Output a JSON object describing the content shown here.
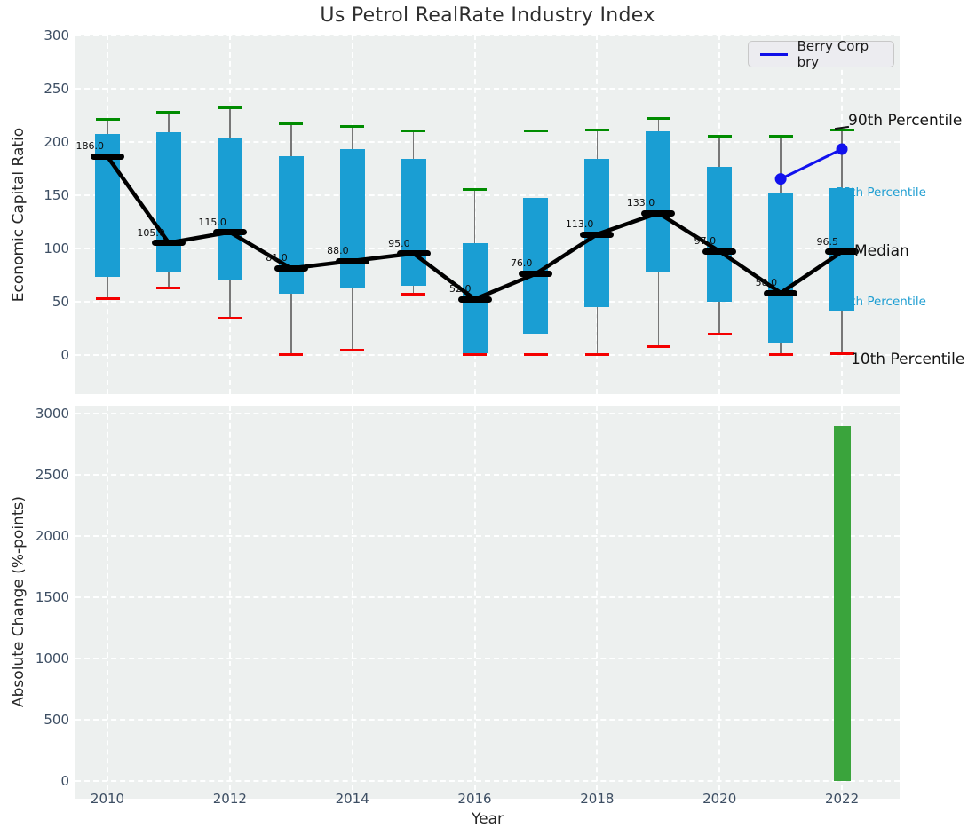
{
  "title": "Us Petrol RealRate Industry Index",
  "legend": {
    "label": "Berry Corp bry"
  },
  "axes": {
    "top": {
      "ylabel": "Economic Capital Ratio",
      "yticks": [
        0,
        50,
        100,
        150,
        200,
        250,
        300
      ]
    },
    "bottom": {
      "ylabel": "Absolute Change (%-points)",
      "xlabel": "Year",
      "yticks": [
        0,
        500,
        1000,
        1500,
        2000,
        2500,
        3000
      ],
      "xticks": [
        2010,
        2012,
        2014,
        2016,
        2018,
        2020,
        2022
      ]
    }
  },
  "annotations": [
    {
      "label": "90th Percentile",
      "value": 218,
      "style": "black"
    },
    {
      "label": "75th Percentile",
      "value": 151,
      "style": "blue"
    },
    {
      "label": "Median",
      "value": 95.5,
      "style": "black"
    },
    {
      "label": "25th Percentile",
      "value": 48,
      "style": "blue"
    },
    {
      "label": "10th Percentile",
      "value": -6,
      "style": "black"
    }
  ],
  "chart_data": [
    {
      "type": "box",
      "title": "Us Petrol RealRate Industry Index",
      "ylabel": "Economic Capital Ratio",
      "ylim": [
        -37,
        300.5
      ],
      "grid": true,
      "legend_position": "upper right",
      "x": [
        2010,
        2011,
        2012,
        2013,
        2014,
        2015,
        2016,
        2017,
        2018,
        2019,
        2020,
        2021,
        2022
      ],
      "series": [
        {
          "name": "90th Percentile",
          "values": [
            221,
            228,
            232,
            217,
            214,
            210,
            155,
            210,
            211,
            222,
            205,
            205,
            211
          ]
        },
        {
          "name": "75th Percentile",
          "values": [
            207,
            209,
            203,
            186,
            193,
            184,
            105,
            147,
            184,
            210,
            176,
            151,
            156
          ]
        },
        {
          "name": "Median",
          "values": [
            186,
            105,
            115,
            81,
            88,
            95,
            52,
            76,
            113,
            133,
            97,
            58,
            96.5
          ]
        },
        {
          "name": "25th Percentile",
          "values": [
            73,
            78,
            70,
            57,
            62,
            65,
            1,
            20,
            45,
            78,
            50,
            11,
            41
          ]
        },
        {
          "name": "10th Percentile",
          "values": [
            53,
            63,
            34,
            0,
            4,
            57,
            0,
            0,
            0,
            8,
            19,
            0,
            1
          ]
        }
      ],
      "median_labels": [
        "186.0",
        "105.0",
        "115.0",
        "81.0",
        "88.0",
        "95.0",
        "52.0",
        "76.0",
        "113.0",
        "133.0",
        "97.0",
        "58.0",
        "96.5"
      ],
      "company_series": {
        "name": "Berry Corp bry",
        "x": [
          2021,
          2022
        ],
        "values": [
          165,
          193
        ]
      }
    },
    {
      "type": "bar",
      "ylabel": "Absolute Change (%-points)",
      "xlabel": "Year",
      "ylim": [
        -145,
        3063
      ],
      "grid": true,
      "x": [
        2010,
        2011,
        2012,
        2013,
        2014,
        2015,
        2016,
        2017,
        2018,
        2019,
        2020,
        2021,
        2022
      ],
      "values": [
        null,
        null,
        null,
        null,
        null,
        null,
        null,
        null,
        null,
        null,
        null,
        null,
        2900
      ]
    }
  ],
  "colors": {
    "box": "#1a9ed3",
    "cap_high": "#008c00",
    "cap_low": "#f40000",
    "median": "#000000",
    "company_line": "#1111ee",
    "bar": "#3aa43c",
    "plot_bg": "#edf0ef",
    "tick_text": "#3d4e63",
    "annotation_blue": "#219fd2"
  }
}
